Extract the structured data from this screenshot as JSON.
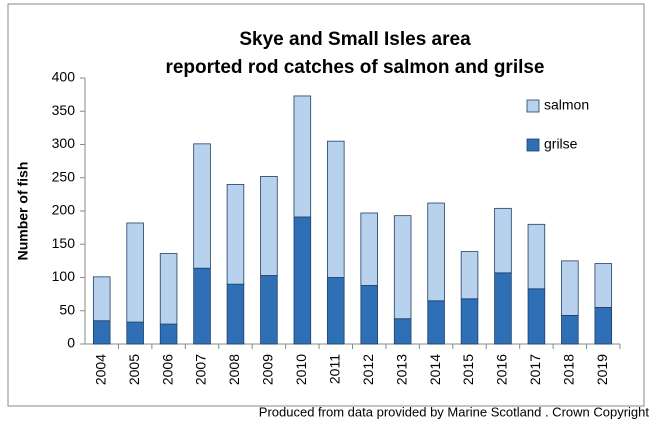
{
  "chart_data": {
    "type": "stacked_bar",
    "title": [
      "Skye and Small Isles area",
      "reported rod catches of salmon and grilse"
    ],
    "y_label": "Number of fish",
    "source": "Produced from data provided by Marine Scotland . Crown Copyright",
    "categories": [
      "2004",
      "2005",
      "2006",
      "2007",
      "2008",
      "2009",
      "2010",
      "2011",
      "2012",
      "2013",
      "2014",
      "2015",
      "2016",
      "2017",
      "2018",
      "2019"
    ],
    "series": [
      {
        "name": "grilse",
        "color": "#2f6fb5",
        "values": [
          35,
          33,
          30,
          114,
          90,
          103,
          191,
          100,
          88,
          38,
          65,
          68,
          107,
          83,
          43,
          55
        ]
      },
      {
        "name": "salmon",
        "color": "#b8d2ee",
        "values": [
          66,
          149,
          106,
          187,
          150,
          149,
          182,
          205,
          109,
          155,
          147,
          71,
          97,
          97,
          82,
          66
        ]
      }
    ],
    "ylim": [
      0,
      400
    ],
    "yticks": [
      0,
      50,
      100,
      150,
      200,
      250,
      300,
      350,
      400
    ],
    "legend": "top-right",
    "grid": false
  }
}
